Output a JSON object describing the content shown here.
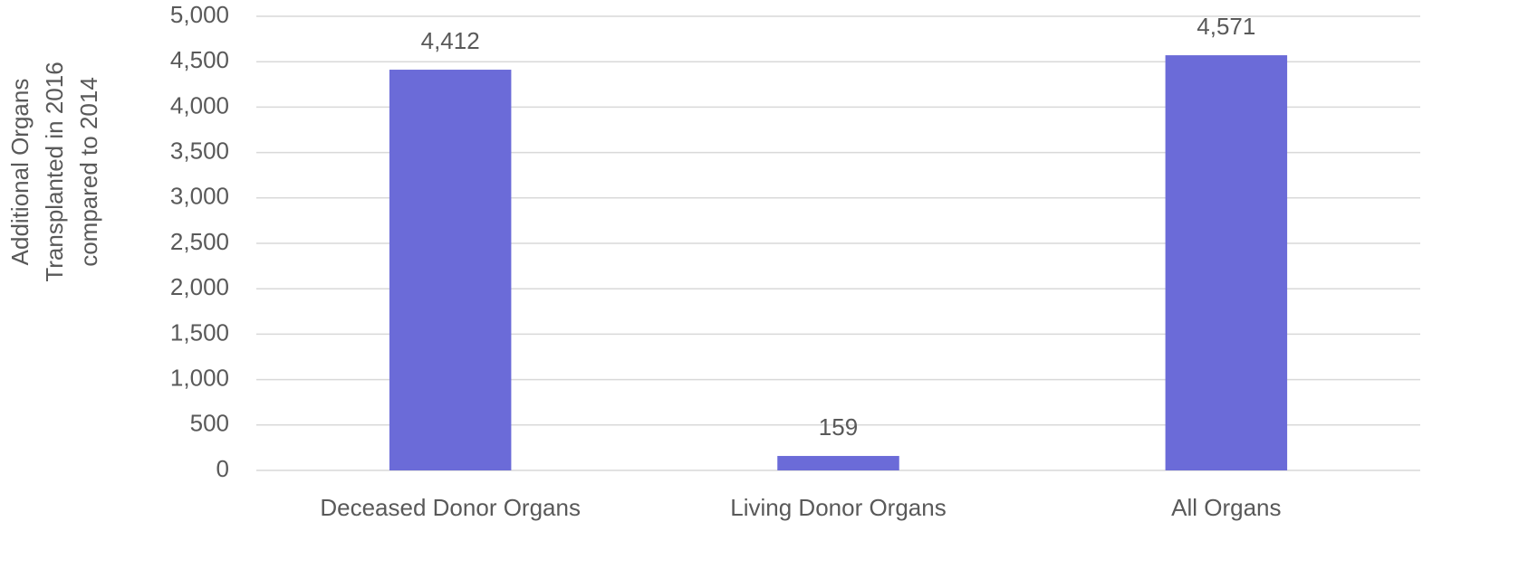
{
  "chart_data": {
    "type": "bar",
    "ylabel": [
      "Additional Organs",
      "Transplanted in 2016",
      "compared to 2014"
    ],
    "categories": [
      "Deceased Donor Organs",
      "Living Donor Organs",
      "All Organs"
    ],
    "values": [
      4412,
      159,
      4571
    ],
    "value_labels": [
      "4,412",
      "159",
      "4,571"
    ],
    "color": "#6b6bd8",
    "ylim": [
      0,
      5000
    ],
    "yticks": [
      0,
      500,
      {
        "value": 1000,
        "label": "1,000"
      },
      {
        "value": 1500,
        "label": "1,500"
      },
      {
        "value": 2000,
        "label": "2,000"
      },
      {
        "value": 2500,
        "label": "2,500"
      },
      {
        "value": 3000,
        "label": "3,000"
      },
      {
        "value": 3500,
        "label": "3,500"
      },
      {
        "value": 4000,
        "label": "4,000"
      },
      {
        "value": 4500,
        "label": "4,500"
      },
      {
        "value": 5000,
        "label": "5,000"
      }
    ],
    "grid": true
  }
}
